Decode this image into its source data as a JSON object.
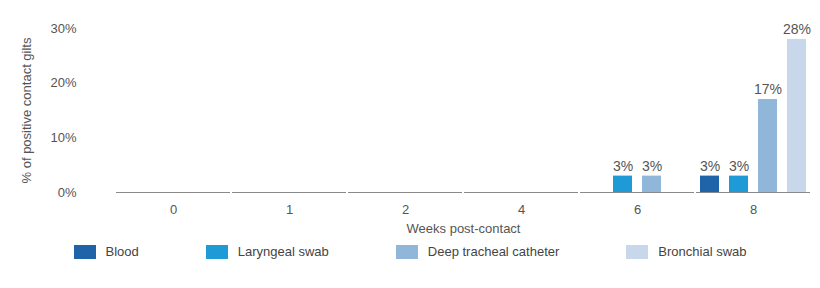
{
  "chart_data": {
    "type": "bar",
    "x_label": "Weeks post-contact",
    "y_label": "% of positive contact gilts",
    "categories": [
      "0",
      "1",
      "2",
      "4",
      "6",
      "8"
    ],
    "series": [
      {
        "name": "Blood",
        "color": "#1f63a9",
        "values": [
          0,
          0,
          0,
          0,
          0,
          3
        ],
        "value_labels": [
          null,
          null,
          null,
          null,
          null,
          "3%"
        ]
      },
      {
        "name": "Laryngeal swab",
        "color": "#1e9bd7",
        "values": [
          0,
          0,
          0,
          0,
          3,
          3
        ],
        "value_labels": [
          null,
          null,
          null,
          null,
          "3%",
          "3%"
        ]
      },
      {
        "name": "Deep tracheal catheter",
        "color": "#90b6da",
        "values": [
          0,
          0,
          0,
          0,
          3,
          17
        ],
        "value_labels": [
          null,
          null,
          null,
          null,
          "3%",
          "17%"
        ]
      },
      {
        "name": "Bronchial swab",
        "color": "#c8d8ea",
        "values": [
          0,
          0,
          0,
          0,
          0,
          28
        ],
        "value_labels": [
          null,
          null,
          null,
          null,
          null,
          "28%"
        ]
      }
    ],
    "ylim": [
      0,
      30
    ],
    "yticks": [
      {
        "value": 0,
        "label": "0%"
      },
      {
        "value": 10,
        "label": "10%"
      },
      {
        "value": 20,
        "label": "20%"
      },
      {
        "value": 30,
        "label": "30%"
      }
    ],
    "data_labels": true,
    "grid": false,
    "legend": "bottom"
  }
}
